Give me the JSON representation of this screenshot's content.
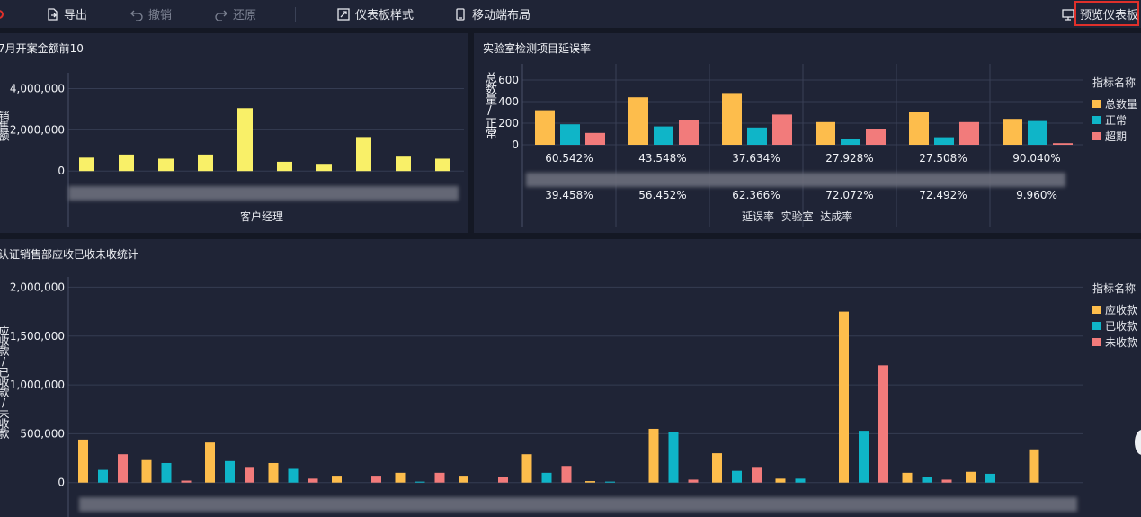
{
  "toolbar": {
    "export_label": "导出",
    "undo_label": "撤销",
    "redo_label": "还原",
    "dashboard_style_label": "仪表板样式",
    "mobile_layout_label": "移动端布局",
    "preview_label": "预览仪表板"
  },
  "colors": {
    "yellow": "#f9f068",
    "gold": "#fdbd4c",
    "cyan": "#0fb5c8",
    "pink": "#f27b7b",
    "panel": "#1f2436",
    "bg": "#141824"
  },
  "chart_top_left": {
    "title": "7月开案金额前10",
    "ylabel": "销售额",
    "xlabel": "客户经理"
  },
  "chart_top_right": {
    "title": "实验室检测项目延误率",
    "ylabel": "总数量/正常",
    "legend_title": "指标名称",
    "legend": [
      {
        "name": "总数量",
        "color": "#fdbd4c"
      },
      {
        "name": "正常",
        "color": "#0fb5c8"
      },
      {
        "name": "超期",
        "color": "#f27b7b"
      }
    ],
    "row1": [
      "60.542%",
      "43.548%",
      "37.634%",
      "27.928%",
      "27.508%",
      "90.040%"
    ],
    "row2": [
      "39.458%",
      "56.452%",
      "62.366%",
      "72.072%",
      "72.492%",
      "9.960%"
    ],
    "footer": "延误率  实验室  达成率"
  },
  "chart_bottom": {
    "title": "认证销售部应收已收未收统计",
    "ylabel": "应收款/已收款/未收款",
    "legend_title": "指标名称",
    "legend": [
      {
        "name": "应收款",
        "color": "#fdbd4c"
      },
      {
        "name": "已收款",
        "color": "#0fb5c8"
      },
      {
        "name": "未收款",
        "color": "#f27b7b"
      }
    ]
  },
  "chart_data": [
    {
      "type": "bar",
      "title": "7月开案金额前10",
      "xlabel": "客户经理",
      "ylabel": "销售额",
      "ylim": [
        -600000,
        4500000
      ],
      "yticks": [
        0,
        2000000,
        4000000
      ],
      "ytick_labels": [
        "0",
        "2,000,000",
        "4,000,000"
      ],
      "grid": true,
      "series": [
        {
          "values": [
            650000,
            800000,
            600000,
            800000,
            3050000,
            450000,
            350000,
            1650000,
            700000,
            600000
          ],
          "color": "#f9f068"
        }
      ]
    },
    {
      "type": "bar",
      "title": "实验室检测项目延误率",
      "ylabel": "总数量/正常",
      "ylim": [
        -50,
        700
      ],
      "yticks": [
        0,
        200,
        400,
        600
      ],
      "ytick_labels": [
        "0",
        "200",
        "400",
        "600"
      ],
      "grid": true,
      "legend_position": "right",
      "series": [
        {
          "name": "总数量",
          "values": [
            320,
            440,
            480,
            210,
            300,
            240
          ],
          "color": "#fdbd4c"
        },
        {
          "name": "正常",
          "values": [
            190,
            170,
            160,
            50,
            70,
            220
          ],
          "color": "#0fb5c8"
        },
        {
          "name": "超期",
          "values": [
            110,
            230,
            280,
            150,
            210,
            15
          ],
          "color": "#f27b7b"
        }
      ]
    },
    {
      "type": "bar",
      "title": "认证销售部应收已收未收统计",
      "ylabel": "应收款/已收款/未收款",
      "ylim": [
        -150000,
        2050000
      ],
      "yticks": [
        0,
        500000,
        1000000,
        1500000,
        2000000
      ],
      "ytick_labels": [
        "0",
        "500,000",
        "1,000,000",
        "1,500,000",
        "2,000,000"
      ],
      "grid": true,
      "legend_position": "right",
      "series": [
        {
          "name": "应收款",
          "values": [
            440000,
            230000,
            410000,
            200000,
            70000,
            100000,
            70000,
            290000,
            15000,
            550000,
            300000,
            40000,
            1750000,
            100000,
            110000,
            340000
          ],
          "color": "#fdbd4c"
        },
        {
          "name": "已收款",
          "values": [
            130000,
            200000,
            220000,
            140000,
            0,
            10000,
            0,
            100000,
            10000,
            520000,
            120000,
            40000,
            530000,
            60000,
            90000,
            0
          ],
          "color": "#0fb5c8"
        },
        {
          "name": "未收款",
          "values": [
            290000,
            20000,
            160000,
            40000,
            70000,
            100000,
            60000,
            170000,
            0,
            30000,
            160000,
            0,
            1200000,
            30000,
            0,
            0
          ],
          "color": "#f27b7b"
        }
      ]
    }
  ]
}
